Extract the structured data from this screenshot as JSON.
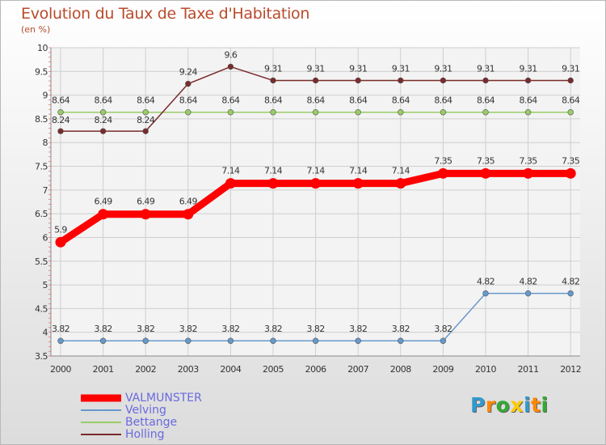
{
  "chart_data": {
    "type": "line",
    "title": "Evolution du Taux de Taxe d'Habitation",
    "subtitle": "(en %)",
    "x": [
      "2000",
      "2001",
      "2002",
      "2003",
      "2004",
      "2005",
      "2006",
      "2007",
      "2008",
      "2009",
      "2010",
      "2011",
      "2012"
    ],
    "ylim": [
      3.5,
      10
    ],
    "yticks": [
      "3.5",
      "4",
      "4.5",
      "5",
      "5.5",
      "6",
      "6.5",
      "7",
      "7.5",
      "8",
      "8.5",
      "9",
      "9.5",
      "10"
    ],
    "grid": true,
    "series": [
      {
        "name": "VALMUNSTER",
        "color": "#ff0000",
        "values": [
          5.9,
          6.49,
          6.49,
          6.49,
          7.14,
          7.14,
          7.14,
          7.14,
          7.14,
          7.35,
          7.35,
          7.35,
          7.35
        ],
        "labels": [
          "5.9",
          "6.49",
          "6.49",
          "6.49",
          "7.14",
          "7.14",
          "7.14",
          "7.14",
          "7.14",
          "7.35",
          "7.35",
          "7.35",
          "7.35"
        ]
      },
      {
        "name": "Velving",
        "color": "#6699cc",
        "values": [
          3.82,
          3.82,
          3.82,
          3.82,
          3.82,
          3.82,
          3.82,
          3.82,
          3.82,
          3.82,
          4.82,
          4.82,
          4.82
        ],
        "labels": [
          "3.82",
          "3.82",
          "3.82",
          "3.82",
          "3.82",
          "3.82",
          "3.82",
          "3.82",
          "3.82",
          "3.82",
          "4.82",
          "4.82",
          "4.82"
        ]
      },
      {
        "name": "Bettange",
        "color": "#99cc66",
        "values": [
          8.64,
          8.64,
          8.64,
          8.64,
          8.64,
          8.64,
          8.64,
          8.64,
          8.64,
          8.64,
          8.64,
          8.64,
          8.64
        ],
        "labels": [
          "8.64",
          "8.64",
          "8.64",
          "8.64",
          "8.64",
          "8.64",
          "8.64",
          "8.64",
          "8.64",
          "8.64",
          "8.64",
          "8.64",
          "8.64"
        ]
      },
      {
        "name": "Holling",
        "color": "#7a2b2b",
        "values": [
          8.24,
          8.24,
          8.24,
          9.24,
          9.6,
          9.31,
          9.31,
          9.31,
          9.31,
          9.31,
          9.31,
          9.31,
          9.31
        ],
        "labels": [
          "8.24",
          "8.24",
          "8.24",
          "9.24",
          "9.6",
          "9.31",
          "9.31",
          "9.31",
          "9.31",
          "9.31",
          "9.31",
          "9.31",
          "9.31"
        ]
      }
    ]
  },
  "legend": {
    "items": [
      {
        "label": "VALMUNSTER",
        "color": "#ff0000"
      },
      {
        "label": "Velving",
        "color": "#6699cc"
      },
      {
        "label": "Bettange",
        "color": "#99cc66"
      },
      {
        "label": "Holling",
        "color": "#7a2b2b"
      }
    ]
  },
  "logo": {
    "letters": [
      "P",
      "r",
      "o",
      "x",
      "i",
      "t",
      "i"
    ],
    "colors": [
      "#3399cc",
      "#ff8800",
      "#33aa33",
      "#ffcc00",
      "#3399cc",
      "#ff8800",
      "#33aa33"
    ]
  }
}
